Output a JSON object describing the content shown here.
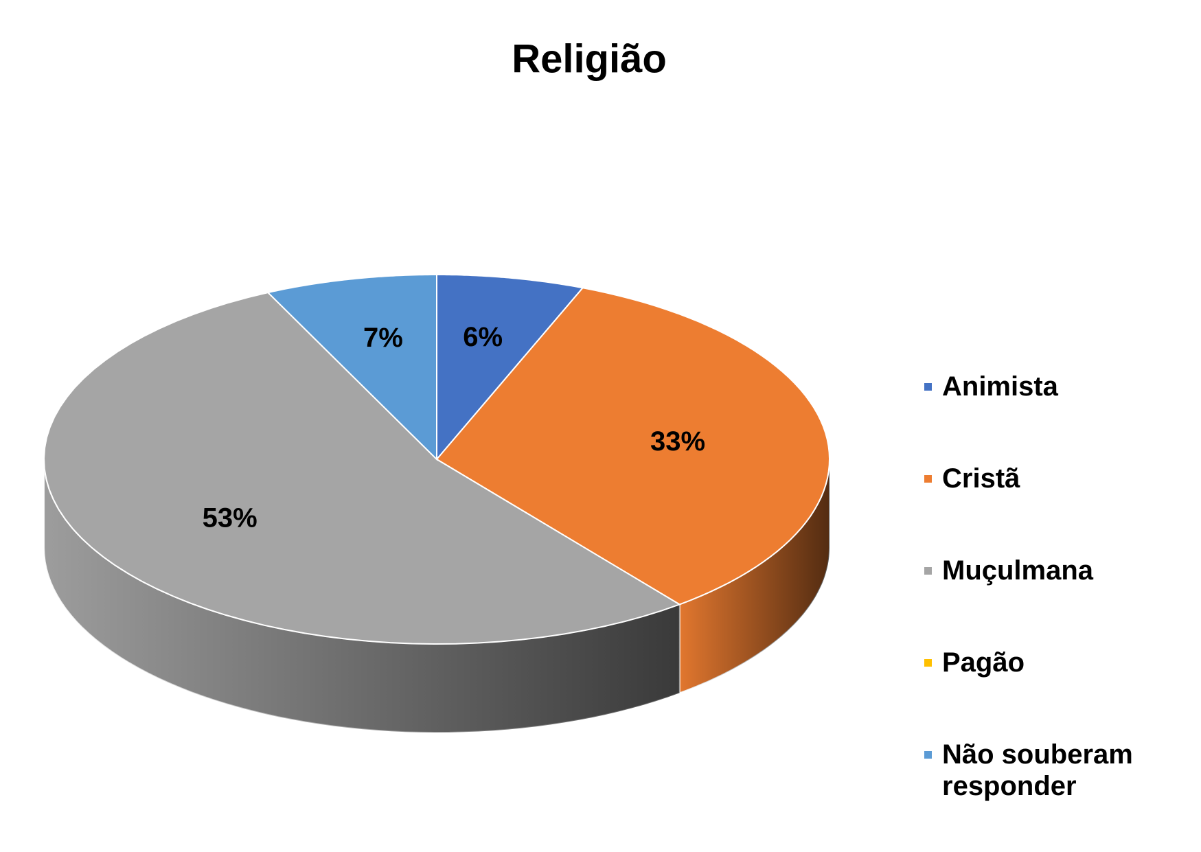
{
  "chart_data": {
    "type": "pie",
    "title": "Religião",
    "categories": [
      "Animista",
      "Cristã",
      "Muçulmana",
      "Pagão",
      "Não souberam responder"
    ],
    "values": [
      6,
      33,
      53,
      0,
      7
    ],
    "value_labels": [
      "6%",
      "33%",
      "53%",
      null,
      "7%"
    ],
    "colors": [
      "#4472c4",
      "#ed7d31",
      "#a5a5a5",
      "#ffc000",
      "#5b9bd5"
    ],
    "legend": "right"
  }
}
